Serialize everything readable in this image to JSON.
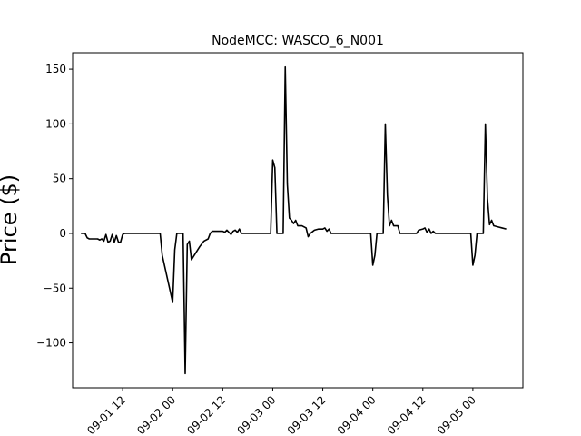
{
  "chart_data": {
    "type": "line",
    "title": "NodeMCC: WASCO_6_N001",
    "xlabel": "",
    "ylabel": "Price ($)",
    "x_axis_type": "datetime",
    "xlim": [
      "2020-09-01 00:00",
      "2020-09-05 12:00"
    ],
    "ylim": [
      -141,
      165
    ],
    "yticks": [
      150,
      100,
      50,
      0,
      -50,
      -100
    ],
    "ytick_labels": [
      "150",
      "100",
      "50",
      "0",
      "−50",
      "−100"
    ],
    "xticks": [
      "2020-09-01 12:00",
      "2020-09-02 00:00",
      "2020-09-02 12:00",
      "2020-09-03 00:00",
      "2020-09-03 12:00",
      "2020-09-04 00:00",
      "2020-09-04 12:00",
      "2020-09-05 00:00"
    ],
    "xtick_labels": [
      "09-01 12",
      "09-02 00",
      "09-02 12",
      "09-03 00",
      "09-03 12",
      "09-04 00",
      "09-04 12",
      "09-05 00"
    ],
    "grid": false,
    "line_color": "#000000",
    "series": [
      {
        "values": [
          [
            "2020-09-01 02:00",
            0
          ],
          [
            "2020-09-01 03:00",
            0
          ],
          [
            "2020-09-01 03:30",
            -4
          ],
          [
            "2020-09-01 04:00",
            -5
          ],
          [
            "2020-09-01 06:00",
            -5
          ],
          [
            "2020-09-01 06:30",
            -6
          ],
          [
            "2020-09-01 07:00",
            -5
          ],
          [
            "2020-09-01 07:30",
            -7
          ],
          [
            "2020-09-01 08:00",
            -1
          ],
          [
            "2020-09-01 08:30",
            -8
          ],
          [
            "2020-09-01 09:00",
            -7
          ],
          [
            "2020-09-01 09:30",
            -1
          ],
          [
            "2020-09-01 10:00",
            -8
          ],
          [
            "2020-09-01 10:30",
            -2
          ],
          [
            "2020-09-01 11:00",
            -8
          ],
          [
            "2020-09-01 11:30",
            -8
          ],
          [
            "2020-09-01 12:00",
            -1
          ],
          [
            "2020-09-01 12:30",
            0
          ],
          [
            "2020-09-01 21:00",
            0
          ],
          [
            "2020-09-01 21:30",
            -20
          ],
          [
            "2020-09-02 00:00",
            -63
          ],
          [
            "2020-09-02 00:30",
            -15
          ],
          [
            "2020-09-02 01:00",
            0
          ],
          [
            "2020-09-02 02:30",
            0
          ],
          [
            "2020-09-02 03:00",
            -128
          ],
          [
            "2020-09-02 03:30",
            -10
          ],
          [
            "2020-09-02 04:00",
            -7
          ],
          [
            "2020-09-02 04:30",
            -24
          ],
          [
            "2020-09-02 05:30",
            -18
          ],
          [
            "2020-09-02 06:30",
            -12
          ],
          [
            "2020-09-02 07:30",
            -7
          ],
          [
            "2020-09-02 08:30",
            -5
          ],
          [
            "2020-09-02 09:00",
            0
          ],
          [
            "2020-09-02 09:30",
            2
          ],
          [
            "2020-09-02 12:00",
            2
          ],
          [
            "2020-09-02 12:30",
            1
          ],
          [
            "2020-09-02 13:00",
            3
          ],
          [
            "2020-09-02 14:00",
            -1
          ],
          [
            "2020-09-02 14:30",
            2
          ],
          [
            "2020-09-02 15:00",
            3
          ],
          [
            "2020-09-02 15:30",
            1
          ],
          [
            "2020-09-02 16:00",
            4
          ],
          [
            "2020-09-02 16:30",
            0
          ],
          [
            "2020-09-02 23:30",
            0
          ],
          [
            "2020-09-03 00:00",
            67
          ],
          [
            "2020-09-03 00:30",
            60
          ],
          [
            "2020-09-03 01:00",
            0
          ],
          [
            "2020-09-03 02:30",
            0
          ],
          [
            "2020-09-03 03:00",
            152
          ],
          [
            "2020-09-03 03:30",
            45
          ],
          [
            "2020-09-03 04:00",
            14
          ],
          [
            "2020-09-03 04:30",
            12
          ],
          [
            "2020-09-03 05:00",
            9
          ],
          [
            "2020-09-03 05:30",
            12
          ],
          [
            "2020-09-03 06:00",
            7
          ],
          [
            "2020-09-03 07:00",
            7
          ],
          [
            "2020-09-03 08:00",
            5
          ],
          [
            "2020-09-03 08:30",
            -3
          ],
          [
            "2020-09-03 09:00",
            0
          ],
          [
            "2020-09-03 10:00",
            3
          ],
          [
            "2020-09-03 11:00",
            4
          ],
          [
            "2020-09-03 12:00",
            4
          ],
          [
            "2020-09-03 12:30",
            5
          ],
          [
            "2020-09-03 13:00",
            2
          ],
          [
            "2020-09-03 13:30",
            4
          ],
          [
            "2020-09-03 14:00",
            0
          ],
          [
            "2020-09-03 23:30",
            0
          ],
          [
            "2020-09-04 00:00",
            -29
          ],
          [
            "2020-09-04 00:30",
            -20
          ],
          [
            "2020-09-04 01:00",
            0
          ],
          [
            "2020-09-04 02:30",
            0
          ],
          [
            "2020-09-04 03:00",
            100
          ],
          [
            "2020-09-04 03:30",
            35
          ],
          [
            "2020-09-04 04:00",
            7
          ],
          [
            "2020-09-04 04:30",
            12
          ],
          [
            "2020-09-04 05:00",
            7
          ],
          [
            "2020-09-04 06:00",
            7
          ],
          [
            "2020-09-04 06:30",
            0
          ],
          [
            "2020-09-04 10:30",
            0
          ],
          [
            "2020-09-04 11:00",
            3
          ],
          [
            "2020-09-04 12:00",
            4
          ],
          [
            "2020-09-04 12:30",
            5
          ],
          [
            "2020-09-04 13:00",
            1
          ],
          [
            "2020-09-04 13:30",
            4
          ],
          [
            "2020-09-04 14:00",
            0
          ],
          [
            "2020-09-04 14:30",
            2
          ],
          [
            "2020-09-04 15:00",
            0
          ],
          [
            "2020-09-04 23:30",
            0
          ],
          [
            "2020-09-05 00:00",
            -29
          ],
          [
            "2020-09-05 00:30",
            -20
          ],
          [
            "2020-09-05 01:00",
            0
          ],
          [
            "2020-09-05 02:30",
            0
          ],
          [
            "2020-09-05 03:00",
            100
          ],
          [
            "2020-09-05 03:30",
            32
          ],
          [
            "2020-09-05 04:00",
            8
          ],
          [
            "2020-09-05 04:30",
            12
          ],
          [
            "2020-09-05 05:00",
            7
          ],
          [
            "2020-09-05 06:00",
            6
          ],
          [
            "2020-09-05 07:00",
            5
          ],
          [
            "2020-09-05 08:00",
            4
          ]
        ]
      }
    ]
  }
}
